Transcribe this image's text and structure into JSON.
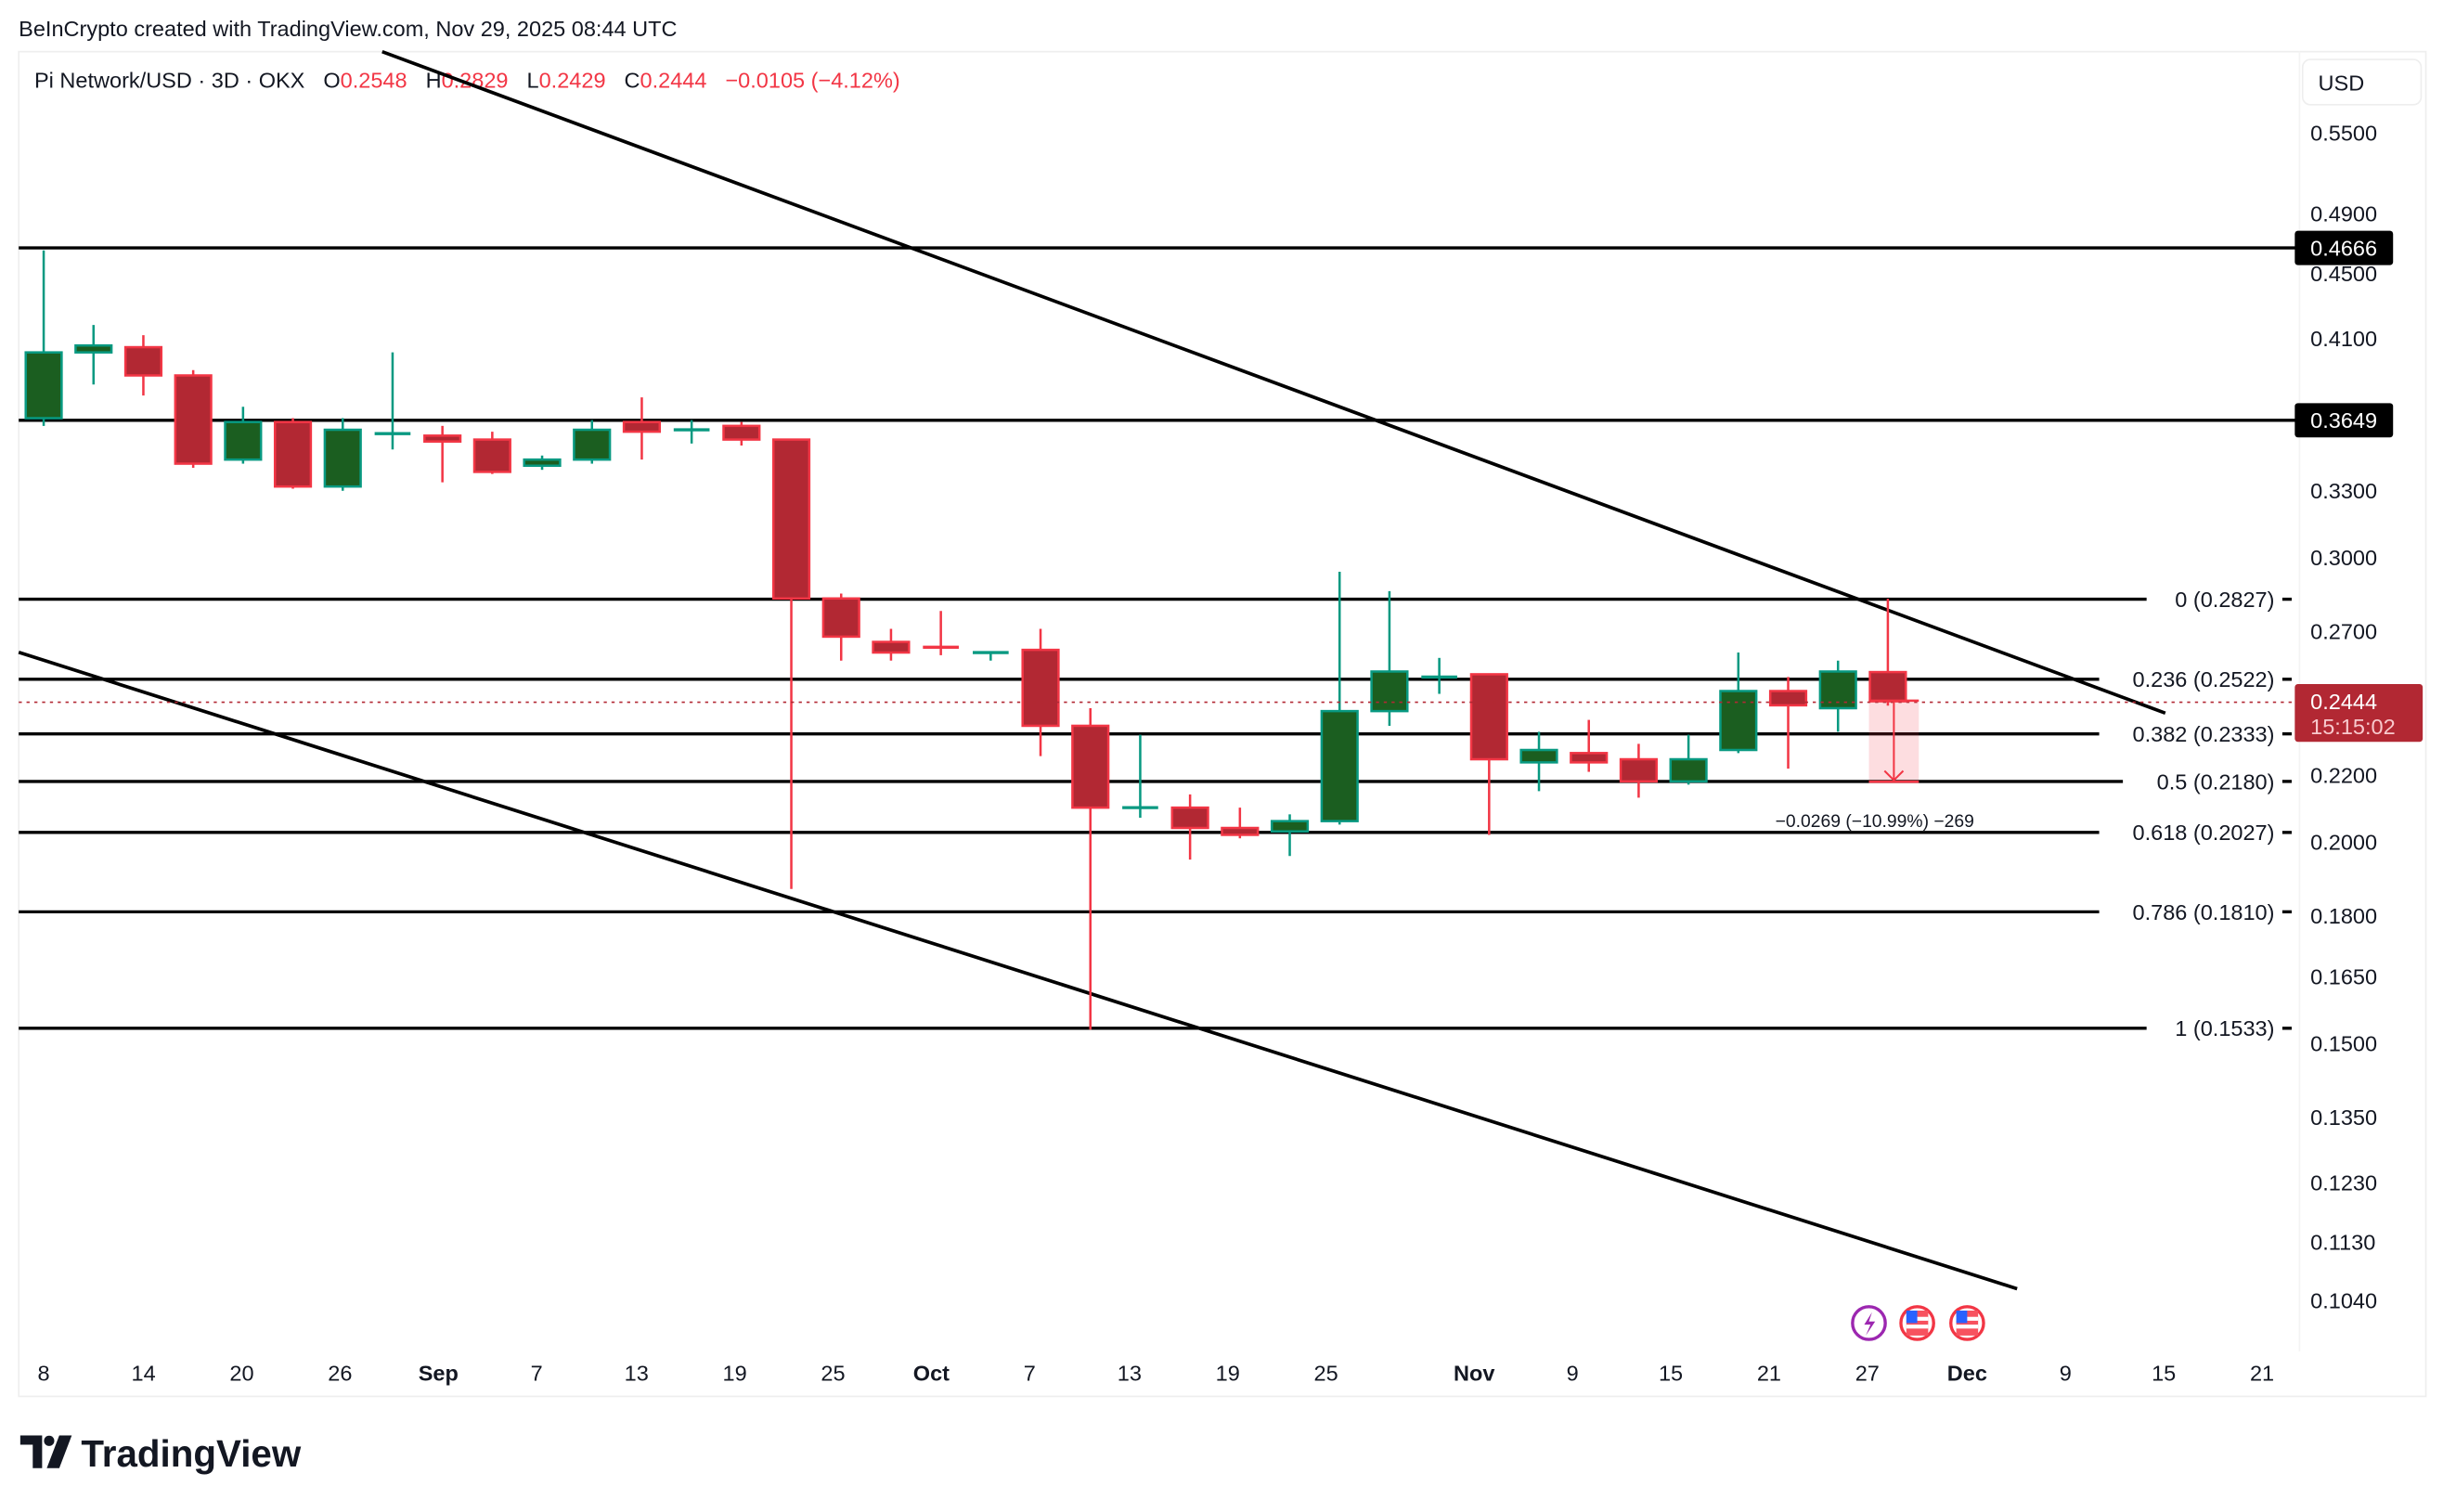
{
  "header": {
    "credit": "BeInCrypto created with TradingView.com, Nov 29, 2025 08:44 UTC"
  },
  "legend": {
    "symbol": "Pi Network/USD · 3D · OKX",
    "o_label": "O",
    "o_value": "0.2548",
    "h_label": "H",
    "h_value": "0.2829",
    "l_label": "L",
    "l_value": "0.2429",
    "c_label": "C",
    "c_value": "0.2444",
    "change": "−0.0105 (−4.12%)"
  },
  "currency_button": "USD",
  "price_axis": {
    "ticks": [
      "0.5500",
      "0.4900",
      "0.4500",
      "0.4100",
      "0.3300",
      "0.3000",
      "0.2700",
      "0.2200",
      "0.2000",
      "0.1800",
      "0.1650",
      "0.1500",
      "0.1350",
      "0.1230",
      "0.1130",
      "0.1040"
    ],
    "badges": [
      {
        "value": "0.4666",
        "color": "#000000"
      },
      {
        "value": "0.3649",
        "color": "#000000"
      }
    ],
    "last_price": {
      "value": "0.2444",
      "countdown": "15:15:02",
      "color": "#b22833"
    }
  },
  "time_axis": {
    "labels": [
      {
        "text": "8",
        "bold": false
      },
      {
        "text": "14",
        "bold": false
      },
      {
        "text": "20",
        "bold": false
      },
      {
        "text": "26",
        "bold": false
      },
      {
        "text": "Sep",
        "bold": true
      },
      {
        "text": "7",
        "bold": false
      },
      {
        "text": "13",
        "bold": false
      },
      {
        "text": "19",
        "bold": false
      },
      {
        "text": "25",
        "bold": false
      },
      {
        "text": "Oct",
        "bold": true
      },
      {
        "text": "7",
        "bold": false
      },
      {
        "text": "13",
        "bold": false
      },
      {
        "text": "19",
        "bold": false
      },
      {
        "text": "25",
        "bold": false
      },
      {
        "text": "Nov",
        "bold": true
      },
      {
        "text": "9",
        "bold": false
      },
      {
        "text": "15",
        "bold": false
      },
      {
        "text": "21",
        "bold": false
      },
      {
        "text": "27",
        "bold": false
      },
      {
        "text": "Dec",
        "bold": true
      },
      {
        "text": "9",
        "bold": false
      },
      {
        "text": "15",
        "bold": false
      },
      {
        "text": "21",
        "bold": false
      }
    ]
  },
  "fibonacci": [
    {
      "label": "0 (0.2827)",
      "price": 0.2827
    },
    {
      "label": "0.236 (0.2522)",
      "price": 0.2522
    },
    {
      "label": "0.382 (0.2333)",
      "price": 0.2333
    },
    {
      "label": "0.5 (0.2180)",
      "price": 0.218
    },
    {
      "label": "0.618 (0.2027)",
      "price": 0.2027
    },
    {
      "label": "0.786 (0.1810)",
      "price": 0.181
    },
    {
      "label": "1 (0.1533)",
      "price": 0.1533
    }
  ],
  "measure": {
    "label": "−0.0269 (−10.99%) −269"
  },
  "footer": {
    "brand": "TradingView"
  },
  "event_icons": [
    "lightning-icon",
    "us-flag-icon",
    "us-flag-icon"
  ],
  "colors": {
    "up": "#1b5e20",
    "up_border": "#089981",
    "down": "#b22833",
    "down_border": "#f23645",
    "lines": "#000000"
  },
  "chart_data": {
    "type": "candlestick",
    "title": "Pi Network/USD · 3D · OKX",
    "scale": "log",
    "ylim": [
      0.098,
      0.59
    ],
    "horizontal_levels": [
      0.4666,
      0.3649
    ],
    "fib_levels": [
      0.2827,
      0.2522,
      0.2333,
      0.218,
      0.2027,
      0.181,
      0.1533
    ],
    "candles": [
      {
        "o": 0.366,
        "h": 0.465,
        "l": 0.362,
        "c": 0.402
      },
      {
        "o": 0.402,
        "h": 0.418,
        "l": 0.384,
        "c": 0.406
      },
      {
        "o": 0.405,
        "h": 0.412,
        "l": 0.378,
        "c": 0.389
      },
      {
        "o": 0.389,
        "h": 0.392,
        "l": 0.341,
        "c": 0.343
      },
      {
        "o": 0.345,
        "h": 0.372,
        "l": 0.343,
        "c": 0.364
      },
      {
        "o": 0.364,
        "h": 0.366,
        "l": 0.331,
        "c": 0.332
      },
      {
        "o": 0.332,
        "h": 0.366,
        "l": 0.33,
        "c": 0.36
      },
      {
        "o": 0.358,
        "h": 0.402,
        "l": 0.35,
        "c": 0.358
      },
      {
        "o": 0.357,
        "h": 0.362,
        "l": 0.334,
        "c": 0.354
      },
      {
        "o": 0.355,
        "h": 0.359,
        "l": 0.338,
        "c": 0.339
      },
      {
        "o": 0.342,
        "h": 0.347,
        "l": 0.34,
        "c": 0.345
      },
      {
        "o": 0.345,
        "h": 0.365,
        "l": 0.343,
        "c": 0.36
      },
      {
        "o": 0.364,
        "h": 0.377,
        "l": 0.345,
        "c": 0.359
      },
      {
        "o": 0.36,
        "h": 0.365,
        "l": 0.353,
        "c": 0.36
      },
      {
        "o": 0.362,
        "h": 0.364,
        "l": 0.352,
        "c": 0.355
      },
      {
        "o": 0.355,
        "h": 0.355,
        "l": 0.187,
        "c": 0.283
      },
      {
        "o": 0.283,
        "h": 0.285,
        "l": 0.259,
        "c": 0.268
      },
      {
        "o": 0.266,
        "h": 0.271,
        "l": 0.259,
        "c": 0.262
      },
      {
        "o": 0.264,
        "h": 0.278,
        "l": 0.261,
        "c": 0.263
      },
      {
        "o": 0.262,
        "h": 0.262,
        "l": 0.259,
        "c": 0.262
      },
      {
        "o": 0.263,
        "h": 0.271,
        "l": 0.226,
        "c": 0.236
      },
      {
        "o": 0.236,
        "h": 0.242,
        "l": 0.153,
        "c": 0.21
      },
      {
        "o": 0.21,
        "h": 0.233,
        "l": 0.207,
        "c": 0.21
      },
      {
        "o": 0.21,
        "h": 0.214,
        "l": 0.195,
        "c": 0.204
      },
      {
        "o": 0.204,
        "h": 0.21,
        "l": 0.201,
        "c": 0.202
      },
      {
        "o": 0.203,
        "h": 0.208,
        "l": 0.196,
        "c": 0.206
      },
      {
        "o": 0.206,
        "h": 0.294,
        "l": 0.205,
        "c": 0.241
      },
      {
        "o": 0.241,
        "h": 0.286,
        "l": 0.236,
        "c": 0.255
      },
      {
        "o": 0.253,
        "h": 0.26,
        "l": 0.247,
        "c": 0.253
      },
      {
        "o": 0.254,
        "h": 0.254,
        "l": 0.202,
        "c": 0.225
      },
      {
        "o": 0.224,
        "h": 0.234,
        "l": 0.215,
        "c": 0.228
      },
      {
        "o": 0.227,
        "h": 0.238,
        "l": 0.221,
        "c": 0.224
      },
      {
        "o": 0.225,
        "h": 0.23,
        "l": 0.213,
        "c": 0.218
      },
      {
        "o": 0.218,
        "h": 0.233,
        "l": 0.217,
        "c": 0.225
      },
      {
        "o": 0.228,
        "h": 0.262,
        "l": 0.227,
        "c": 0.248
      },
      {
        "o": 0.248,
        "h": 0.253,
        "l": 0.222,
        "c": 0.243
      },
      {
        "o": 0.242,
        "h": 0.259,
        "l": 0.234,
        "c": 0.255
      },
      {
        "o": 0.2548,
        "h": 0.2829,
        "l": 0.2429,
        "c": 0.2444
      }
    ]
  }
}
